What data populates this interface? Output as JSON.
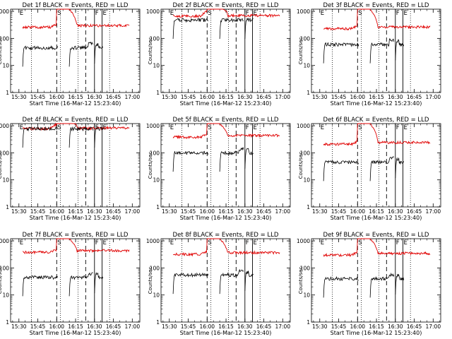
{
  "chart_data": [
    {
      "type": "line",
      "title": "Det 1f BLACK = Events, RED = LLD",
      "xlabel": "Start Time (16-Mar-12 15:23:40)",
      "ylabel": "Counts/sec",
      "red_base": 260,
      "black_base": 45,
      "red_peak": 1200,
      "profile": "normal"
    },
    {
      "type": "line",
      "title": "Det 2f BLACK = Events, RED = LLD",
      "xlabel": "Start Time (16-Mar-12 15:23:40)",
      "ylabel": "Counts/sec",
      "red_base": 700,
      "black_base": 480,
      "red_peak": 1500,
      "profile": "flat"
    },
    {
      "type": "line",
      "title": "Det 3f BLACK = Events, RED = LLD",
      "xlabel": "Start Time (16-Mar-12 15:23:40)",
      "ylabel": "Counts/sec",
      "red_base": 230,
      "black_base": 60,
      "red_peak": 1200,
      "profile": "normal"
    },
    {
      "type": "line",
      "title": "Det 4f BLACK = Events, RED = LLD",
      "xlabel": "Start Time (16-Mar-12 15:23:40)",
      "ylabel": "Counts/sec",
      "red_base": 820,
      "black_base": 780,
      "red_peak": 1500,
      "profile": "flat"
    },
    {
      "type": "line",
      "title": "Det 5f BLACK = Events, RED = LLD",
      "xlabel": "Start Time (16-Mar-12 15:23:40)",
      "ylabel": "Counts/sec",
      "red_base": 380,
      "black_base": 100,
      "red_peak": 1200,
      "profile": "normal"
    },
    {
      "type": "line",
      "title": "Det 6f BLACK = Events, RED = LLD",
      "xlabel": "Start Time (16-Mar-12 15:23:40)",
      "ylabel": "Counts/sec",
      "red_base": 210,
      "black_base": 45,
      "red_peak": 1200,
      "profile": "normal"
    },
    {
      "type": "line",
      "title": "Det 7f BLACK = Events, RED = LLD",
      "xlabel": "Start Time (16-Mar-12 15:23:40)",
      "ylabel": "Counts/sec",
      "red_base": 380,
      "black_base": 45,
      "red_peak": 1200,
      "profile": "normal"
    },
    {
      "type": "line",
      "title": "Det 8f BLACK = Events, RED = LLD",
      "xlabel": "Start Time (16-Mar-12 15:23:40)",
      "ylabel": "Counts/sec",
      "red_base": 320,
      "black_base": 55,
      "red_peak": 1200,
      "profile": "normal"
    },
    {
      "type": "line",
      "title": "Det 9f BLACK = Events, RED = LLD",
      "xlabel": "Start Time (16-Mar-12 15:23:40)",
      "ylabel": "Counts/sec",
      "red_base": 300,
      "black_base": 40,
      "red_peak": 1200,
      "profile": "normal"
    }
  ],
  "x_axis": {
    "range_min": [
      15.39,
      17.1
    ],
    "tick_minutes": [
      930,
      945,
      960,
      975,
      990,
      1005,
      1020
    ],
    "tick_labels": [
      "15:30",
      "15:45",
      "16:00",
      "16:15",
      "16:30",
      "16:45",
      "17:00"
    ]
  },
  "y_axis": {
    "scale": "log",
    "range": [
      1,
      1200
    ],
    "tick_values": [
      1,
      10,
      100,
      1000
    ],
    "tick_labels": [
      "1",
      "10",
      "100",
      "1000"
    ]
  },
  "markers": {
    "dotted_minutes": [
      940,
      963,
      977,
      1002
    ],
    "dashed_minutes": [
      960,
      983
    ],
    "solid_minutes": [
      990,
      996
    ],
    "labels": [
      {
        "text": "E",
        "minute": 930
      },
      {
        "text": "S",
        "minute": 960
      },
      {
        "text": "F",
        "minute": 990
      },
      {
        "text": "E",
        "minute": 996
      }
    ]
  },
  "segments_minutes": [
    [
      933,
      961
    ],
    [
      970,
      989
    ],
    [
      990,
      997
    ]
  ],
  "series_colors": {
    "events": "#000000",
    "lld": "#e00000"
  }
}
